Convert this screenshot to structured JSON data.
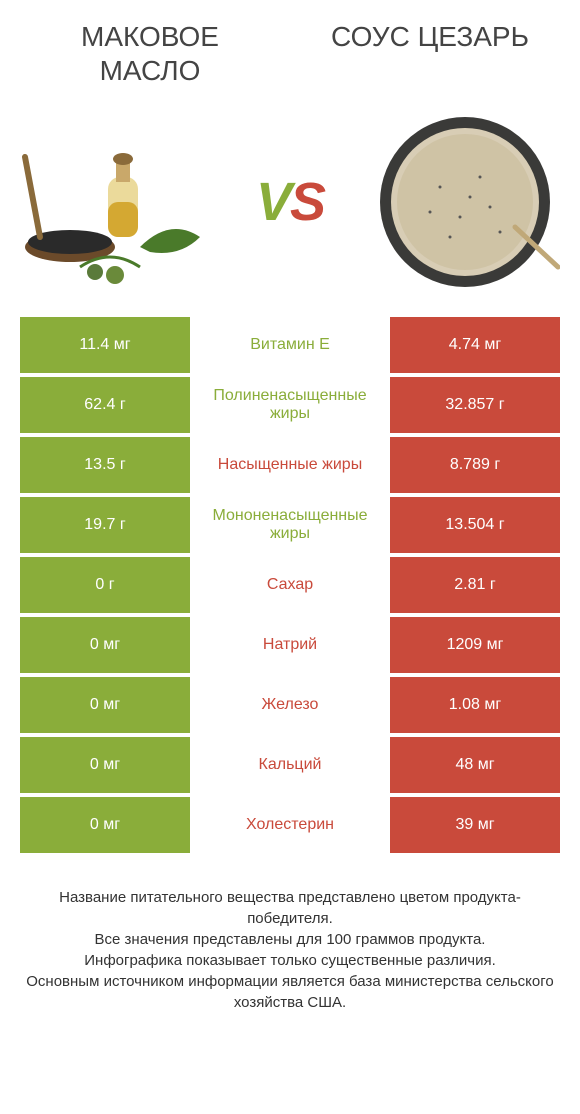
{
  "colors": {
    "left": "#8aad3a",
    "right": "#c94a3b",
    "bg": "#ffffff",
    "text": "#333333"
  },
  "header": {
    "left_title": "МАКОВОЕ МАСЛО",
    "right_title": "СОУС ЦЕЗАРЬ",
    "vs_v": "V",
    "vs_s": "S"
  },
  "rows": [
    {
      "left": "11.4 мг",
      "label": "Витамин E",
      "right": "4.74 мг",
      "winner": "left"
    },
    {
      "left": "62.4 г",
      "label": "Полиненасыщенные жиры",
      "right": "32.857 г",
      "winner": "left"
    },
    {
      "left": "13.5 г",
      "label": "Насыщенные жиры",
      "right": "8.789 г",
      "winner": "right"
    },
    {
      "left": "19.7 г",
      "label": "Мононенасыщенные жиры",
      "right": "13.504 г",
      "winner": "left"
    },
    {
      "left": "0 г",
      "label": "Сахар",
      "right": "2.81 г",
      "winner": "right"
    },
    {
      "left": "0 мг",
      "label": "Натрий",
      "right": "1209 мг",
      "winner": "right"
    },
    {
      "left": "0 мг",
      "label": "Железо",
      "right": "1.08 мг",
      "winner": "right"
    },
    {
      "left": "0 мг",
      "label": "Кальций",
      "right": "48 мг",
      "winner": "right"
    },
    {
      "left": "0 мг",
      "label": "Холестерин",
      "right": "39 мг",
      "winner": "right"
    }
  ],
  "footer": {
    "line1": "Название питательного вещества представлено цветом продукта-победителя.",
    "line2": "Все значения представлены для 100 граммов продукта.",
    "line3": "Инфографика показывает только существенные различия.",
    "line4": "Основным источником информации является база министерства сельского хозяйства США."
  }
}
